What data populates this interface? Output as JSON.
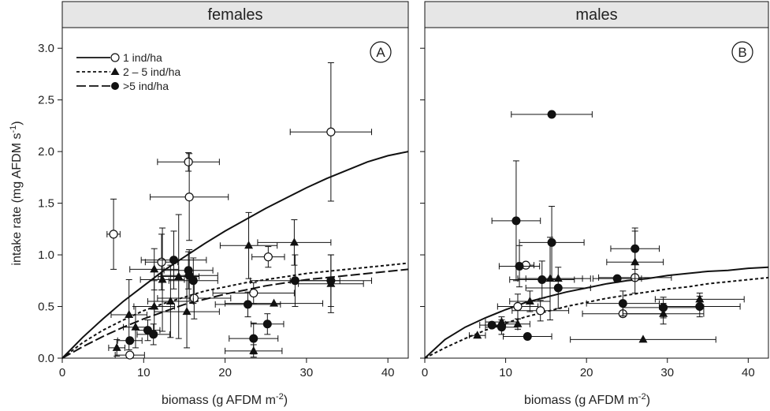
{
  "figure": {
    "ylabel": "intake rate (mg AFDM s",
    "ylabel_sup": "-1",
    "ylabel_end": ")",
    "xlabel": "biomass (g AFDM m",
    "xlabel_sup": "-2",
    "xlabel_end": ")"
  },
  "legend": {
    "entries": [
      {
        "label": "1 ind/ha",
        "marker": "open-circle",
        "line": "solid"
      },
      {
        "label": "2 – 5 ind/ha",
        "marker": "filled-triangle",
        "line": "short-dash"
      },
      {
        "label": ">5 ind/ha",
        "marker": "filled-circle",
        "line": "long-dash"
      }
    ]
  },
  "colors": {
    "strip": "#e6e6e6",
    "ink": "#111111",
    "marker_open": "#ffffff"
  },
  "chart_data": [
    {
      "type": "scatter",
      "panel_title": "females",
      "panel_label": "A",
      "xlim": [
        0,
        42.5
      ],
      "ylim": [
        0,
        3.2
      ],
      "xticks": [
        0,
        10,
        20,
        30,
        40
      ],
      "yticks": [
        "0.0",
        "0.5",
        "1.0",
        "1.5",
        "2.0",
        "2.5",
        "3.0"
      ],
      "series": [
        {
          "name": "1 ind/ha",
          "marker": "open-circle",
          "points": [
            {
              "x": 6.3,
              "y": 1.2,
              "xerr": 0.8,
              "yerr": 0.34
            },
            {
              "x": 8.3,
              "y": 0.03,
              "xerr": 1.8,
              "yerr": 0.0
            },
            {
              "x": 12.2,
              "y": 0.93,
              "xerr": 2.0,
              "yerr": 0.27
            },
            {
              "x": 15.5,
              "y": 1.9,
              "xerr": 3.8,
              "yerr": 0.09
            },
            {
              "x": 15.6,
              "y": 1.56,
              "xerr": 4.8,
              "yerr": 0.42
            },
            {
              "x": 16.2,
              "y": 0.58,
              "xerr": 4.5,
              "yerr": 0.2
            },
            {
              "x": 23.5,
              "y": 0.63,
              "xerr": 5.0,
              "yerr": 0.1
            },
            {
              "x": 25.3,
              "y": 0.98,
              "xerr": 2.0,
              "yerr": 0.1
            },
            {
              "x": 33.0,
              "y": 2.19,
              "xerr": 5.0,
              "yerr": 0.67
            }
          ]
        },
        {
          "name": "2 – 5 ind/ha",
          "marker": "filled-triangle",
          "points": [
            {
              "x": 6.7,
              "y": 0.1,
              "xerr": 1.0,
              "yerr": 0.08
            },
            {
              "x": 8.2,
              "y": 0.42,
              "xerr": 2.2,
              "yerr": 0.34
            },
            {
              "x": 9.0,
              "y": 0.3,
              "xerr": 1.5,
              "yerr": 0.2
            },
            {
              "x": 11.3,
              "y": 0.86,
              "xerr": 3.0,
              "yerr": 0.2
            },
            {
              "x": 11.3,
              "y": 0.5,
              "xerr": 2.5,
              "yerr": 0.25
            },
            {
              "x": 12.3,
              "y": 0.76,
              "xerr": 2.7,
              "yerr": 0.5
            },
            {
              "x": 13.3,
              "y": 0.55,
              "xerr": 2.8,
              "yerr": 0.35
            },
            {
              "x": 14.3,
              "y": 0.79,
              "xerr": 2.5,
              "yerr": 0.6
            },
            {
              "x": 15.3,
              "y": 0.45,
              "xerr": 4.0,
              "yerr": 0.35
            },
            {
              "x": 22.9,
              "y": 1.09,
              "xerr": 3.5,
              "yerr": 0.32
            },
            {
              "x": 23.5,
              "y": 0.07,
              "xerr": 3.5,
              "yerr": 0.06
            },
            {
              "x": 26.0,
              "y": 0.53,
              "xerr": 6.0,
              "yerr": 0.0
            },
            {
              "x": 28.5,
              "y": 1.12,
              "xerr": 4.5,
              "yerr": 0.22
            },
            {
              "x": 33.0,
              "y": 0.72,
              "xerr": 4.0,
              "yerr": 0.28
            }
          ]
        },
        {
          "name": ">5 ind/ha",
          "marker": "filled-circle",
          "points": [
            {
              "x": 8.3,
              "y": 0.17,
              "xerr": 1.5,
              "yerr": 0.0
            },
            {
              "x": 10.5,
              "y": 0.27,
              "xerr": 1.5,
              "yerr": 0.1
            },
            {
              "x": 11.2,
              "y": 0.23,
              "xerr": 2.0,
              "yerr": 0.1
            },
            {
              "x": 13.7,
              "y": 0.95,
              "xerr": 4.0,
              "yerr": 0.28
            },
            {
              "x": 15.5,
              "y": 0.85,
              "xerr": 3.0,
              "yerr": 0.18
            },
            {
              "x": 15.6,
              "y": 0.8,
              "xerr": 3.5,
              "yerr": 0.25
            },
            {
              "x": 16.1,
              "y": 0.75,
              "xerr": 3.0,
              "yerr": 0.22
            },
            {
              "x": 22.8,
              "y": 0.52,
              "xerr": 4.0,
              "yerr": 0.12
            },
            {
              "x": 23.5,
              "y": 0.19,
              "xerr": 3.0,
              "yerr": 0.15
            },
            {
              "x": 25.2,
              "y": 0.33,
              "xerr": 2.0,
              "yerr": 0.1
            },
            {
              "x": 28.6,
              "y": 0.75,
              "xerr": 5.5,
              "yerr": 0.25
            },
            {
              "x": 33.0,
              "y": 0.75,
              "xerr": 5.0,
              "yerr": 0.25
            }
          ]
        }
      ],
      "curves": [
        {
          "style": "solid",
          "x": [
            0,
            2.5,
            5,
            7.5,
            10,
            12.5,
            15,
            17.5,
            20,
            22.5,
            25,
            27.5,
            30,
            32.5,
            35,
            37.5,
            40,
            42.5
          ],
          "y": [
            0,
            0.2,
            0.38,
            0.55,
            0.7,
            0.85,
            0.98,
            1.11,
            1.23,
            1.34,
            1.45,
            1.55,
            1.65,
            1.74,
            1.82,
            1.9,
            1.96,
            2.0
          ]
        },
        {
          "style": "short-dash",
          "x": [
            0,
            2.5,
            5,
            7.5,
            10,
            12.5,
            15,
            17.5,
            20,
            22.5,
            25,
            27.5,
            30,
            32.5,
            35,
            37.5,
            40,
            42.5
          ],
          "y": [
            0,
            0.15,
            0.27,
            0.37,
            0.46,
            0.53,
            0.59,
            0.65,
            0.69,
            0.73,
            0.76,
            0.79,
            0.82,
            0.84,
            0.86,
            0.88,
            0.9,
            0.92
          ]
        },
        {
          "style": "long-dash",
          "x": [
            0,
            2.5,
            5,
            7.5,
            10,
            12.5,
            15,
            17.5,
            20,
            22.5,
            25,
            27.5,
            30,
            32.5,
            35,
            37.5,
            40,
            42.5
          ],
          "y": [
            0,
            0.11,
            0.21,
            0.3,
            0.38,
            0.45,
            0.52,
            0.57,
            0.62,
            0.66,
            0.7,
            0.73,
            0.76,
            0.78,
            0.8,
            0.82,
            0.84,
            0.86
          ]
        }
      ]
    },
    {
      "type": "scatter",
      "panel_title": "males",
      "panel_label": "B",
      "xlim": [
        0,
        42.5
      ],
      "ylim": [
        0,
        3.2
      ],
      "xticks": [
        0,
        10,
        20,
        30,
        40
      ],
      "yticks": [
        "0.0",
        "0.5",
        "1.0",
        "1.5",
        "2.0",
        "2.5",
        "3.0"
      ],
      "series": [
        {
          "name": "1 ind/ha",
          "marker": "open-circle",
          "points": [
            {
              "x": 11.5,
              "y": 0.5,
              "xerr": 2.5,
              "yerr": 0.12
            },
            {
              "x": 12.5,
              "y": 0.9,
              "xerr": 1.0,
              "yerr": 0.0
            },
            {
              "x": 14.3,
              "y": 0.46,
              "xerr": 3.5,
              "yerr": 0.1
            },
            {
              "x": 24.5,
              "y": 0.43,
              "xerr": 5.0,
              "yerr": 0.0
            },
            {
              "x": 26.0,
              "y": 0.78,
              "xerr": 4.5,
              "yerr": 0.0
            }
          ]
        },
        {
          "name": "2 – 5 ind/ha",
          "marker": "filled-triangle",
          "points": [
            {
              "x": 6.5,
              "y": 0.22,
              "xerr": 1.0,
              "yerr": 0.0
            },
            {
              "x": 9.5,
              "y": 0.35,
              "xerr": 2.0,
              "yerr": 0.05
            },
            {
              "x": 11.5,
              "y": 0.33,
              "xerr": 1.5,
              "yerr": 0.05
            },
            {
              "x": 13.0,
              "y": 0.55,
              "xerr": 2.5,
              "yerr": 0.1
            },
            {
              "x": 15.5,
              "y": 0.77,
              "xerr": 4.0,
              "yerr": 0.4
            },
            {
              "x": 16.5,
              "y": 0.77,
              "xerr": 4.0,
              "yerr": 0.0
            },
            {
              "x": 26.0,
              "y": 0.93,
              "xerr": 3.5,
              "yerr": 0.3
            },
            {
              "x": 27.0,
              "y": 0.18,
              "xerr": 9.0,
              "yerr": 0.0
            },
            {
              "x": 29.5,
              "y": 0.43,
              "xerr": 5.0,
              "yerr": 0.1
            },
            {
              "x": 34.0,
              "y": 0.57,
              "xerr": 5.5,
              "yerr": 0.06
            }
          ]
        },
        {
          "name": ">5 ind/ha",
          "marker": "filled-circle",
          "points": [
            {
              "x": 8.3,
              "y": 0.32,
              "xerr": 1.5,
              "yerr": 0.0
            },
            {
              "x": 9.5,
              "y": 0.3,
              "xerr": 2.0,
              "yerr": 0.07
            },
            {
              "x": 11.3,
              "y": 1.33,
              "xerr": 3.0,
              "yerr": 0.58
            },
            {
              "x": 11.7,
              "y": 0.89,
              "xerr": 2.5,
              "yerr": 0.2
            },
            {
              "x": 12.7,
              "y": 0.21,
              "xerr": 3.0,
              "yerr": 0.0
            },
            {
              "x": 14.5,
              "y": 0.76,
              "xerr": 4.0,
              "yerr": 0.18
            },
            {
              "x": 15.7,
              "y": 2.36,
              "xerr": 5.0,
              "yerr": 0.0
            },
            {
              "x": 15.7,
              "y": 1.12,
              "xerr": 4.0,
              "yerr": 0.35
            },
            {
              "x": 16.5,
              "y": 0.68,
              "xerr": 4.0,
              "yerr": 0.2
            },
            {
              "x": 23.8,
              "y": 0.77,
              "xerr": 3.0,
              "yerr": 0.0
            },
            {
              "x": 24.5,
              "y": 0.53,
              "xerr": 4.5,
              "yerr": 0.12
            },
            {
              "x": 26.0,
              "y": 1.06,
              "xerr": 3.0,
              "yerr": 0.2
            },
            {
              "x": 29.5,
              "y": 0.49,
              "xerr": 5.0,
              "yerr": 0.1
            },
            {
              "x": 34.0,
              "y": 0.5,
              "xerr": 5.0,
              "yerr": 0.1
            }
          ]
        }
      ],
      "curves": [
        {
          "style": "solid",
          "x": [
            0,
            2.5,
            5,
            7.5,
            10,
            12.5,
            15,
            17.5,
            20,
            22.5,
            25,
            27.5,
            30,
            32.5,
            35,
            37.5,
            40,
            42.5
          ],
          "y": [
            0,
            0.18,
            0.3,
            0.39,
            0.47,
            0.54,
            0.59,
            0.64,
            0.68,
            0.72,
            0.75,
            0.77,
            0.8,
            0.82,
            0.84,
            0.85,
            0.87,
            0.88
          ]
        },
        {
          "style": "short-dash",
          "x": [
            0,
            2.5,
            5,
            7.5,
            10,
            12.5,
            15,
            17.5,
            20,
            22.5,
            25,
            27.5,
            30,
            32.5,
            35,
            37.5,
            40,
            42.5
          ],
          "y": [
            0,
            0.1,
            0.19,
            0.27,
            0.34,
            0.4,
            0.45,
            0.5,
            0.54,
            0.58,
            0.61,
            0.64,
            0.67,
            0.69,
            0.72,
            0.74,
            0.76,
            0.78
          ]
        }
      ]
    }
  ]
}
